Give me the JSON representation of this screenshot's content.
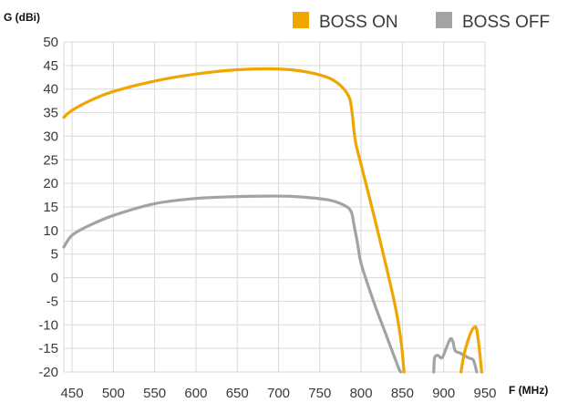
{
  "chart_data": {
    "type": "line",
    "ylabel": "G (dBi)",
    "xlabel": "F (MHz)",
    "xlim": [
      440,
      950
    ],
    "ylim": [
      -20,
      50
    ],
    "x_ticks": [
      450,
      500,
      550,
      600,
      650,
      700,
      750,
      800,
      850,
      900,
      950
    ],
    "y_ticks": [
      50,
      45,
      40,
      35,
      30,
      25,
      20,
      15,
      10,
      5,
      0,
      -5,
      -10,
      -15,
      -20
    ],
    "grid": true,
    "legend_position": "top-right",
    "series": [
      {
        "name": "BOSS ON",
        "color": "#F0A500",
        "segments": [
          [
            [
              440,
              34
            ],
            [
              450,
              35.5
            ],
            [
              475,
              37.8
            ],
            [
              500,
              39.5
            ],
            [
              550,
              41.7
            ],
            [
              600,
              43.2
            ],
            [
              650,
              44.1
            ],
            [
              690,
              44.3
            ],
            [
              720,
              44.0
            ],
            [
              750,
              43.0
            ],
            [
              770,
              41.5
            ],
            [
              785,
              38.5
            ],
            [
              789,
              35
            ],
            [
              793,
              29
            ],
            [
              800,
              24
            ],
            [
              820,
              10
            ],
            [
              840,
              -5
            ],
            [
              848,
              -13
            ],
            [
              852,
              -20
            ]
          ],
          [
            [
              921,
              -20
            ],
            [
              925,
              -16
            ],
            [
              932,
              -12
            ],
            [
              937,
              -10.5
            ],
            [
              940,
              -11
            ],
            [
              943,
              -15
            ],
            [
              946,
              -20
            ]
          ]
        ]
      },
      {
        "name": "BOSS OFF",
        "color": "#A3A3A3",
        "segments": [
          [
            [
              440,
              6.5
            ],
            [
              450,
              9
            ],
            [
              470,
              11
            ],
            [
              500,
              13.2
            ],
            [
              550,
              15.7
            ],
            [
              600,
              16.8
            ],
            [
              650,
              17.2
            ],
            [
              685,
              17.3
            ],
            [
              720,
              17.2
            ],
            [
              760,
              16.5
            ],
            [
              780,
              15.3
            ],
            [
              788,
              14
            ],
            [
              791,
              11.5
            ],
            [
              796,
              7
            ],
            [
              800,
              3
            ],
            [
              815,
              -5
            ],
            [
              830,
              -12
            ],
            [
              845,
              -19
            ],
            [
              848,
              -20
            ]
          ],
          [
            [
              888,
              -20
            ],
            [
              889,
              -17
            ],
            [
              893,
              -16.5
            ],
            [
              898,
              -17
            ],
            [
              903,
              -15
            ],
            [
              908,
              -13
            ],
            [
              911,
              -13.5
            ],
            [
              914,
              -15.5
            ],
            [
              920,
              -16
            ],
            [
              930,
              -17
            ],
            [
              936,
              -17.5
            ],
            [
              940,
              -20
            ]
          ]
        ]
      }
    ]
  }
}
